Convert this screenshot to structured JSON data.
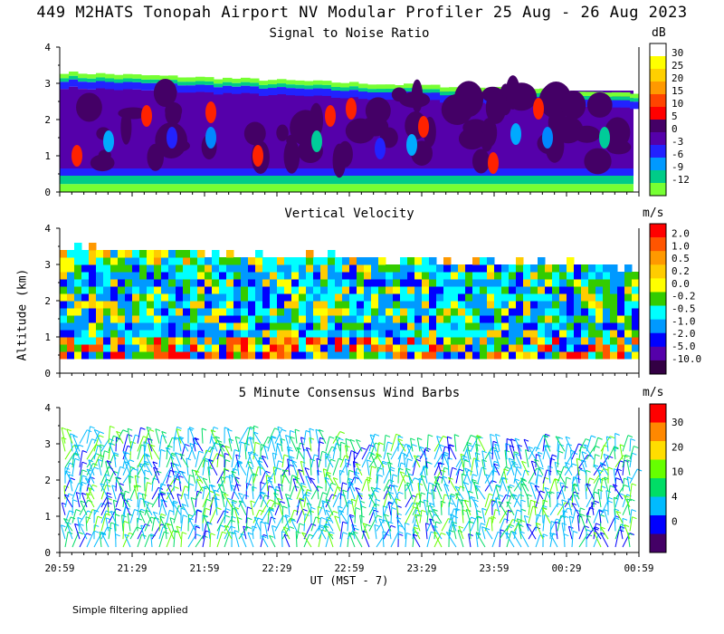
{
  "title": "449 M2HATS Tonopah Airport NV Modular Profiler 25 Aug - 26 Aug 2023",
  "footer": "Simple filtering applied",
  "chart_data": [
    {
      "type": "heatmap",
      "title": "Signal to Noise Ratio",
      "unit": "dB",
      "ylabel": "Altitude (km)",
      "xlabel": "UT  (MST - 7)",
      "ylim": [
        0,
        4
      ],
      "yticks": [
        "0",
        "1",
        "2",
        "3",
        "4"
      ],
      "xticks": [
        "20:59",
        "21:29",
        "21:59",
        "22:29",
        "22:59",
        "23:29",
        "23:59",
        "00:29",
        "00:59"
      ],
      "colorbar": {
        "labels": [
          "30",
          "25",
          "20",
          "15",
          "10",
          "5",
          "0",
          "-3",
          "-6",
          "-9",
          "-12"
        ],
        "colors": [
          "#ffffff",
          "#ffff00",
          "#ffd000",
          "#ff9900",
          "#ff4400",
          "#ff0000",
          "#440066",
          "#5500aa",
          "#2222ff",
          "#0099ff",
          "#00cc88",
          "#77ff33"
        ]
      },
      "layers": [
        {
          "range": "0.0-0.2 km",
          "level": "-12"
        },
        {
          "range": "0.2-0.4 km",
          "level": "-9"
        },
        {
          "range": "0.4-0.6 km",
          "level": "-3"
        },
        {
          "range": "0.6-2.8 km",
          "level": "0 to 5"
        },
        {
          "range": "2.8-3.2 km",
          "level": "-6 to -12"
        }
      ]
    },
    {
      "type": "heatmap",
      "title": "Vertical Velocity",
      "unit": "m/s",
      "ylim": [
        0,
        4
      ],
      "yticks": [
        "0",
        "1",
        "2",
        "3",
        "4"
      ],
      "colorbar": {
        "labels": [
          "2.0",
          "1.0",
          "0.5",
          "0.2",
          "0.0",
          "-0.2",
          "-0.5",
          "-1.0",
          "-2.0",
          "-5.0",
          "-10.0"
        ],
        "colors": [
          "#ff0000",
          "#ff5500",
          "#ff9900",
          "#ffcc00",
          "#ffff00",
          "#33cc00",
          "#00ffff",
          "#0099ff",
          "#0000ff",
          "#5500aa",
          "#330044"
        ]
      }
    },
    {
      "type": "scatter",
      "title": "5 Minute Consensus Wind Barbs",
      "unit": "m/s",
      "ylim": [
        0,
        4
      ],
      "yticks": [
        "0",
        "1",
        "2",
        "3",
        "4"
      ],
      "colorbar": {
        "labels": [
          "30",
          "20",
          "10",
          "4",
          "0"
        ],
        "colors": [
          "#ff0000",
          "#ff8800",
          "#ffdd00",
          "#66ff00",
          "#00dd66",
          "#00bbff",
          "#0000ff",
          "#440066"
        ]
      }
    }
  ]
}
